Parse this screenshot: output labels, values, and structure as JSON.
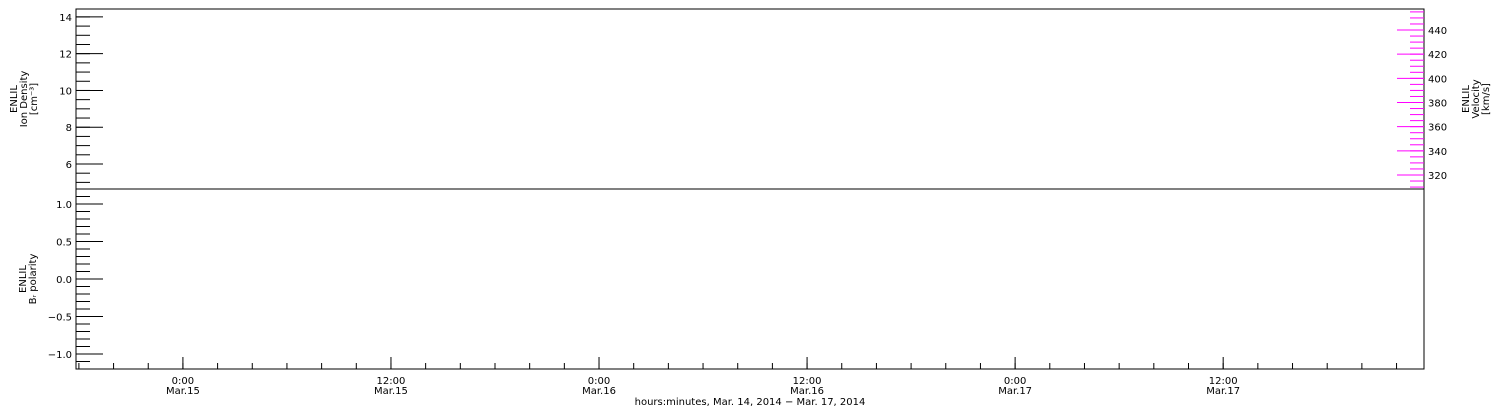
{
  "chart_data": [
    {
      "type": "line",
      "panel": "top",
      "ylabel_lines": [
        "ENLIL",
        "Ion Density",
        "[cm⁻³]"
      ],
      "ylim": [
        4.64,
        14.43
      ],
      "yticks": [
        6,
        8,
        10,
        12,
        14
      ],
      "yminor_step": 0.5,
      "right_axis": {
        "label_lines": [
          "ENLIL",
          "Velocity",
          "[km/s]"
        ],
        "ylim": [
          308.4,
          457.4
        ],
        "yticks": [
          320,
          340,
          360,
          380,
          400,
          420,
          440
        ],
        "yminor_step": 5,
        "color": "#ff00ff"
      },
      "series": []
    },
    {
      "type": "line",
      "panel": "bottom",
      "ylabel_lines": [
        "ENLIL",
        "Bᵣ polarity"
      ],
      "ylim": [
        -1.2,
        1.2
      ],
      "yticks": [
        -1.0,
        -0.5,
        0.0,
        0.5,
        1.0
      ],
      "ytick_labels": [
        "−1.0",
        "−0.5",
        "0.0",
        "0.5",
        "1.0"
      ],
      "yminor_step": 0.1,
      "series": []
    }
  ],
  "xaxis": {
    "xlim": [
      "2014-03-14T17:50",
      "2014-03-17T23:35"
    ],
    "major_ticks": [
      {
        "time": "2014-03-15T00:00",
        "label1": "0:00",
        "label2": "Mar.15"
      },
      {
        "time": "2014-03-15T12:00",
        "label1": "12:00",
        "label2": "Mar.15"
      },
      {
        "time": "2014-03-16T00:00",
        "label1": "0:00",
        "label2": "Mar.16"
      },
      {
        "time": "2014-03-16T12:00",
        "label1": "12:00",
        "label2": "Mar.16"
      },
      {
        "time": "2014-03-17T00:00",
        "label1": "0:00",
        "label2": "Mar.17"
      },
      {
        "time": "2014-03-17T12:00",
        "label1": "12:00",
        "label2": "Mar.17"
      }
    ],
    "minor_step_hours": 2,
    "xlabel": "hours:minutes, Mar. 14, 2014 − Mar. 17, 2014"
  }
}
